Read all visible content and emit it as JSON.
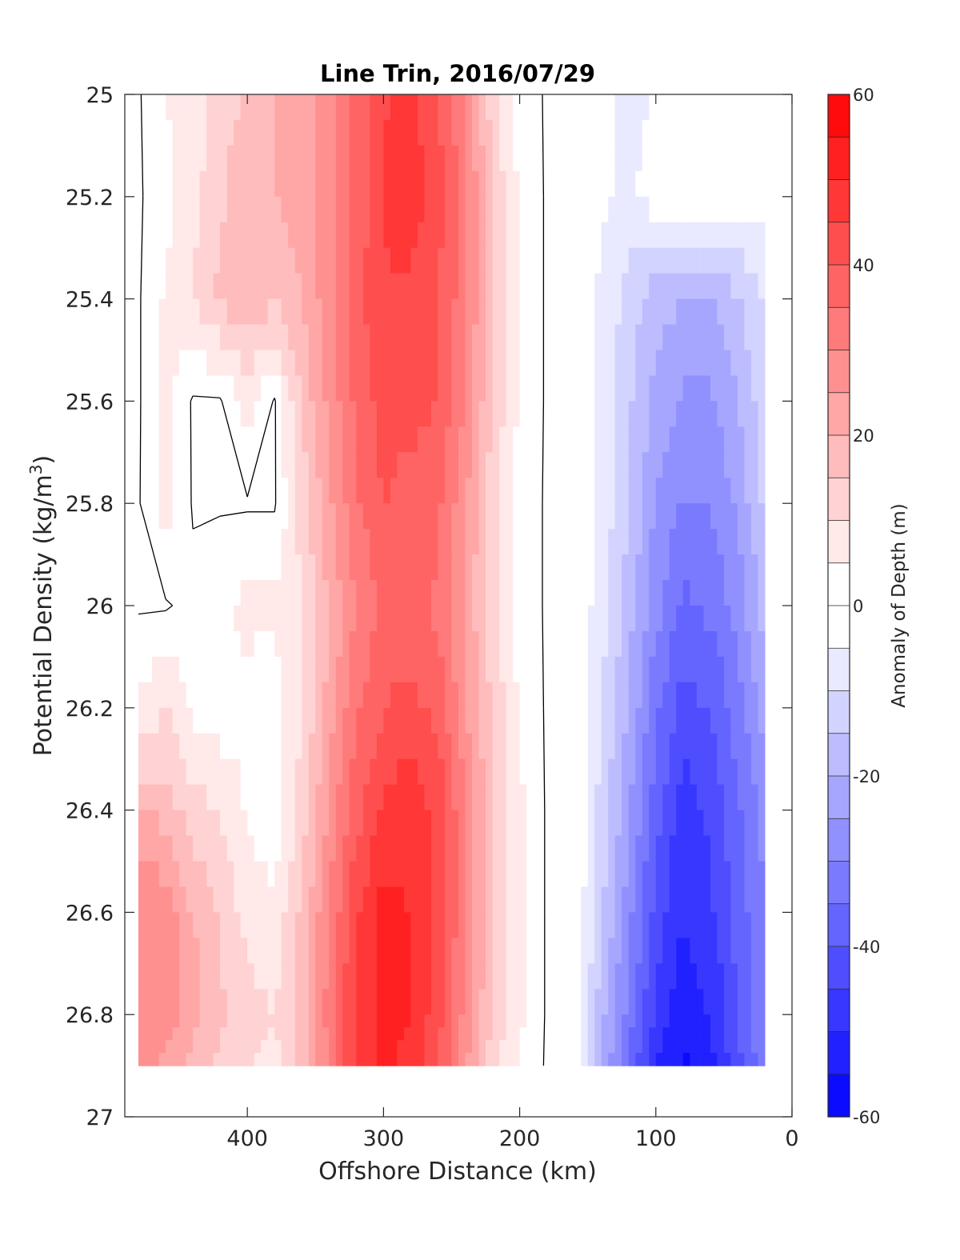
{
  "chart_data": {
    "type": "heatmap",
    "title": "Line Trin, 2016/07/29",
    "xlabel": "Offshore Distance (km)",
    "ylabel_main": "Potential Density (kg/m",
    "ylabel_sup": "3",
    "ylabel_close": ")",
    "colorbar_label": "Anomaly of Depth (m)",
    "xlim": [
      490,
      0
    ],
    "ylim": [
      25,
      27
    ],
    "x_reversed": true,
    "y_reversed": true,
    "xticks": [
      400,
      300,
      200,
      100,
      0
    ],
    "yticks": [
      25,
      25.2,
      25.4,
      25.6,
      25.8,
      26,
      26.2,
      26.4,
      26.6,
      26.8,
      27
    ],
    "ytick_labels": [
      "25",
      "25.2",
      "25.4",
      "25.6",
      "25.8",
      "26",
      "26.2",
      "26.4",
      "26.6",
      "26.8",
      "27"
    ],
    "colorbar_ticks": [
      60,
      40,
      20,
      0,
      -20,
      -40,
      -60
    ],
    "colorbar_levels": [
      -60,
      -55,
      -50,
      -45,
      -40,
      -35,
      -30,
      -25,
      -20,
      -15,
      -10,
      -5,
      0,
      5,
      10,
      15,
      20,
      25,
      30,
      35,
      40,
      45,
      50,
      55,
      60
    ],
    "colormap": {
      "negative": "#0000ff",
      "zero": "#ffffff",
      "positive": "#ff0000"
    },
    "grid": false,
    "x": [
      480,
      460,
      440,
      420,
      400,
      380,
      360,
      340,
      320,
      300,
      280,
      260,
      240,
      220,
      200,
      180,
      160,
      140,
      120,
      100,
      80,
      60,
      40,
      20
    ],
    "y": [
      25.0,
      25.2,
      25.4,
      25.6,
      25.8,
      26.0,
      26.2,
      26.4,
      26.6,
      26.8,
      26.9
    ],
    "z": [
      [
        0,
        5,
        8,
        12,
        16,
        20,
        22,
        28,
        36,
        44,
        46,
        40,
        30,
        12,
        3,
        0,
        0,
        -2,
        -8,
        -4,
        -2,
        -2,
        -2,
        -2
      ],
      [
        0,
        3,
        8,
        14,
        20,
        20,
        22,
        28,
        36,
        46,
        48,
        42,
        32,
        14,
        4,
        0,
        0,
        -4,
        -6,
        -2,
        -2,
        -2,
        -2,
        -2
      ],
      [
        0,
        6,
        10,
        16,
        18,
        16,
        20,
        28,
        38,
        44,
        44,
        40,
        32,
        14,
        4,
        0,
        0,
        -6,
        -12,
        -18,
        -20,
        -20,
        -16,
        -10
      ],
      [
        0,
        6,
        0,
        0,
        8,
        0,
        16,
        26,
        36,
        42,
        42,
        40,
        30,
        14,
        4,
        0,
        0,
        -6,
        -14,
        -22,
        -26,
        -26,
        -20,
        -12
      ],
      [
        0,
        8,
        0,
        0,
        0,
        0,
        12,
        24,
        34,
        40,
        38,
        36,
        26,
        12,
        3,
        0,
        0,
        -6,
        -14,
        -26,
        -30,
        -30,
        -24,
        -14
      ],
      [
        0,
        0,
        2,
        4,
        6,
        6,
        10,
        20,
        30,
        36,
        36,
        34,
        24,
        12,
        3,
        0,
        0,
        -8,
        -18,
        -28,
        -36,
        -34,
        -28,
        -18
      ],
      [
        6,
        10,
        4,
        2,
        4,
        2,
        10,
        22,
        34,
        40,
        42,
        38,
        26,
        14,
        4,
        0,
        0,
        -10,
        -20,
        -34,
        -42,
        -40,
        -32,
        -22
      ],
      [
        20,
        18,
        12,
        10,
        4,
        2,
        12,
        26,
        38,
        46,
        48,
        44,
        30,
        16,
        6,
        0,
        0,
        -12,
        -24,
        -38,
        -48,
        -44,
        -36,
        -28
      ],
      [
        30,
        28,
        20,
        14,
        8,
        6,
        16,
        30,
        44,
        52,
        50,
        44,
        30,
        16,
        6,
        0,
        0,
        -14,
        -28,
        -42,
        -50,
        -46,
        -38,
        -30
      ],
      [
        30,
        28,
        22,
        16,
        12,
        10,
        18,
        32,
        46,
        52,
        50,
        42,
        28,
        14,
        6,
        0,
        0,
        -18,
        -32,
        -46,
        -54,
        -50,
        -40,
        -30
      ],
      [
        28,
        24,
        18,
        14,
        10,
        8,
        16,
        30,
        46,
        52,
        48,
        40,
        26,
        12,
        4,
        0,
        0,
        -20,
        -36,
        -50,
        -56,
        -52,
        -42,
        -32
      ]
    ],
    "zero_contour_note": "black line marks the 0 m anomaly contour"
  }
}
